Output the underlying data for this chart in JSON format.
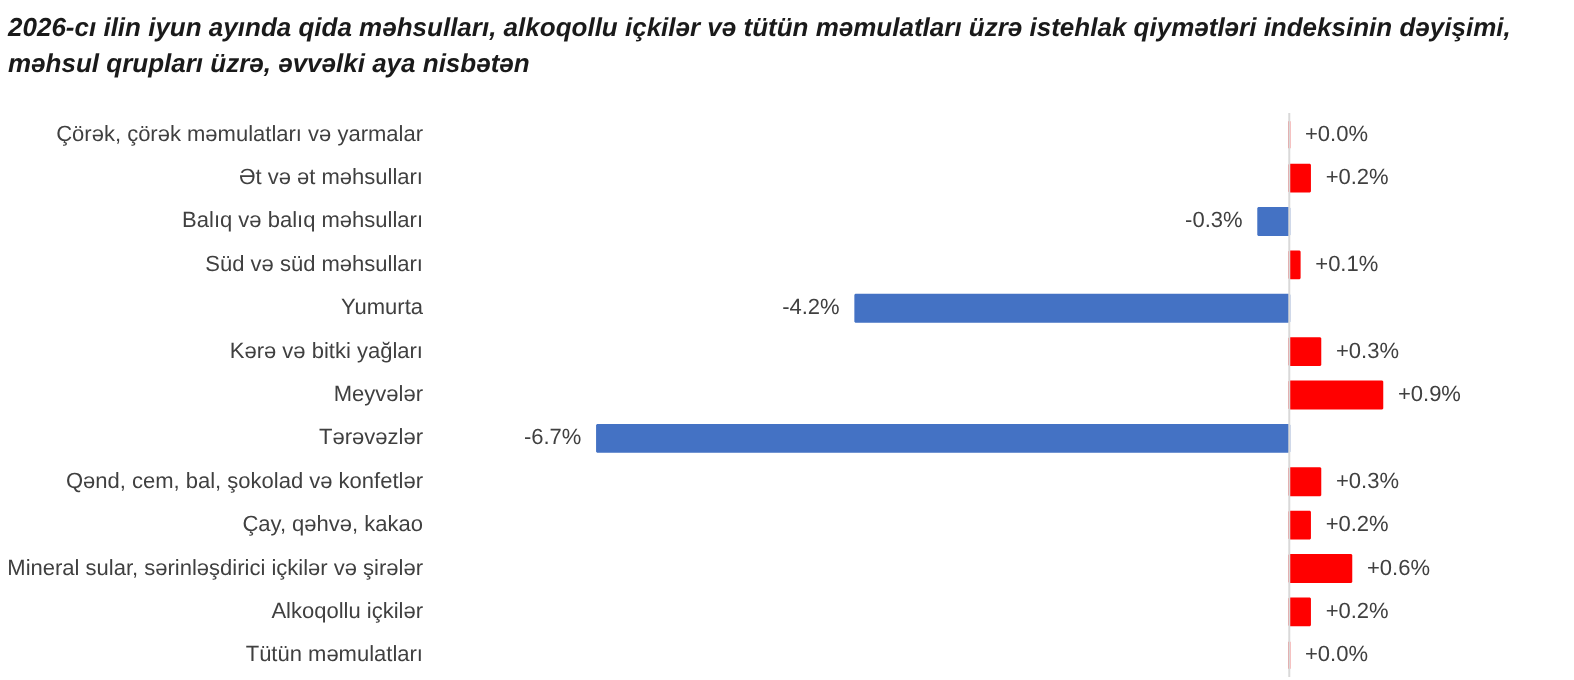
{
  "chart_data": {
    "type": "bar",
    "orientation": "horizontal",
    "title": "2026-cı ilin iyun ayında qida məhsulları, alkoqollu içkilər və tütün məmulatları üzrə istehlak qiymətləri indeksinin dəyişimi, məhsul qrupları üzrə, əvvəlki aya nisbətən",
    "categories": [
      "Çörək, çörək məmulatları və yarmalar",
      "Ət və ət məhsulları",
      "Balıq və balıq məhsulları",
      "Süd və süd məhsulları",
      "Yumurta",
      "Kərə və bitki yağları",
      "Meyvələr",
      "Tərəvəzlər",
      "Qənd, cem, bal, şokolad və konfetlər",
      "Çay, qəhvə, kakao",
      "Mineral sular, sərinləşdirici içkilər və şirələr",
      "Alkoqollu içkilər",
      "Tütün məmulatları"
    ],
    "values": [
      0.0,
      0.2,
      -0.3,
      0.1,
      -4.2,
      0.3,
      0.9,
      -6.7,
      0.3,
      0.2,
      0.6,
      0.2,
      0.0
    ],
    "colors": [
      "#ff0000",
      "#ff0000",
      "#4472c4",
      "#ff0000",
      "#4472c4",
      "#ff0000",
      "#ff0000",
      "#4472c4",
      "#ff0000",
      "#ff0000",
      "#ff0000",
      "#ff0000",
      "#ff0000"
    ],
    "value_labels": [
      "+0.0%",
      "+0.2%",
      "-0.3%",
      "+0.1%",
      "-4.2%",
      "+0.3%",
      "+0.9%",
      "-6.7%",
      "+0.3%",
      "+0.2%",
      "+0.6%",
      "+0.2%",
      "+0.0%"
    ],
    "grid": false
  }
}
